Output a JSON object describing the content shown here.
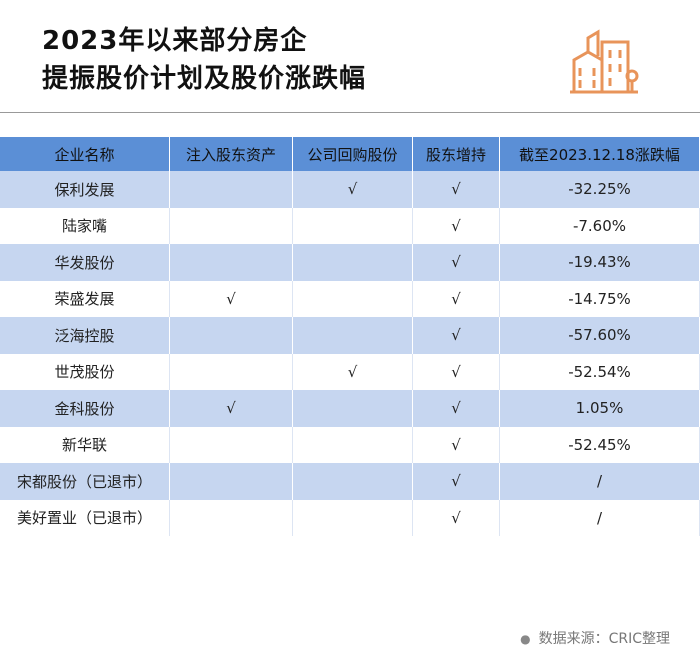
{
  "header": {
    "title_lines": [
      "2023年以来部分房企",
      "提振股价计划及股价涨跌幅"
    ]
  },
  "table": {
    "columns": [
      "企业名称",
      "注入股东资产",
      "公司回购股份",
      "股东增持",
      "截至2023.12.18涨跌幅"
    ],
    "rows": [
      [
        "保利发展",
        null,
        "√",
        "√",
        "-32.25%"
      ],
      [
        "陆家嘴",
        null,
        null,
        "√",
        "-7.60%"
      ],
      [
        "华发股份",
        null,
        null,
        "√",
        "-19.43%"
      ],
      [
        "荣盛发展",
        "√",
        null,
        "√",
        "-14.75%"
      ],
      [
        "泛海控股",
        null,
        null,
        "√",
        "-57.60%"
      ],
      [
        "世茂股份",
        null,
        "√",
        "√",
        "-52.54%"
      ],
      [
        "金科股份",
        "√",
        null,
        "√",
        "1.05%"
      ],
      [
        "新华联",
        null,
        null,
        "√",
        "-52.45%"
      ],
      [
        "宋都股份（已退市）",
        null,
        null,
        "√",
        "/"
      ],
      [
        "美好置业（已退市）",
        null,
        null,
        "√",
        "/"
      ]
    ]
  },
  "footer": {
    "source": "数据来源：CRIC整理"
  }
}
